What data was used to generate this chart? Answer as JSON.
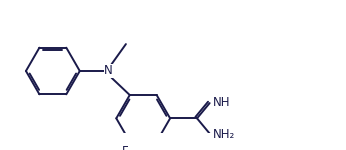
{
  "line_color": "#1a1a4a",
  "bg_color": "#ffffff",
  "font_size": 8.5,
  "line_width": 1.4,
  "labels": {
    "N": "N",
    "F": "F",
    "NH": "NH",
    "NH2": "NH₂"
  }
}
